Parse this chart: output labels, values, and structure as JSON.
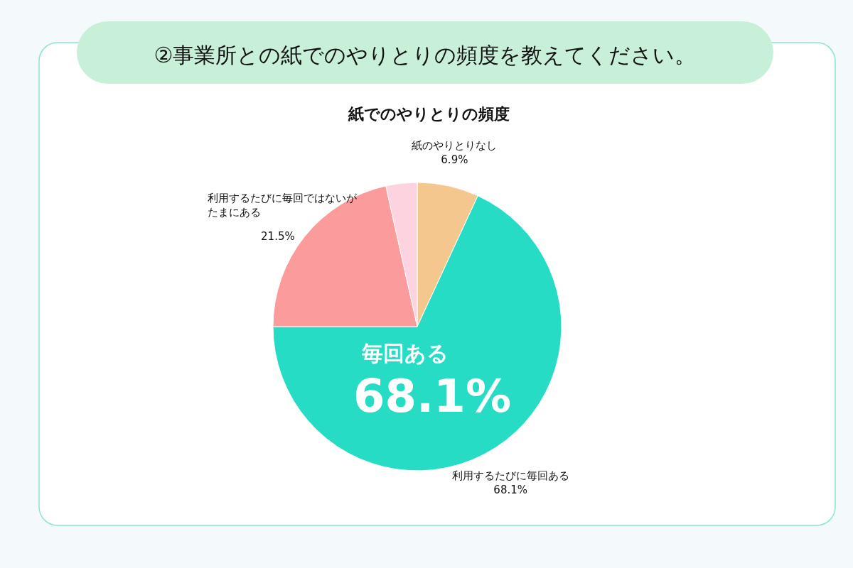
{
  "chart_data": {
    "type": "pie",
    "title": "②事業所との紙でのやりとりの頻度を教えてください。",
    "subtitle": "紙でのやりとりの頻度",
    "categories": [
      "紙のやりとりなし",
      "利用するたびに毎回ある",
      "利用するたびに毎回ではないがたまにある",
      null
    ],
    "values": [
      6.9,
      68.1,
      21.5,
      3.5
    ],
    "colors": [
      "#f4c78f",
      "#27dcc4",
      "#fb9b9b",
      "#fdd3e0"
    ],
    "value_labels": [
      "6.9%",
      "68.1%",
      "21.5%",
      null
    ],
    "annotations": [
      "毎回ある",
      "68.1%"
    ]
  }
}
